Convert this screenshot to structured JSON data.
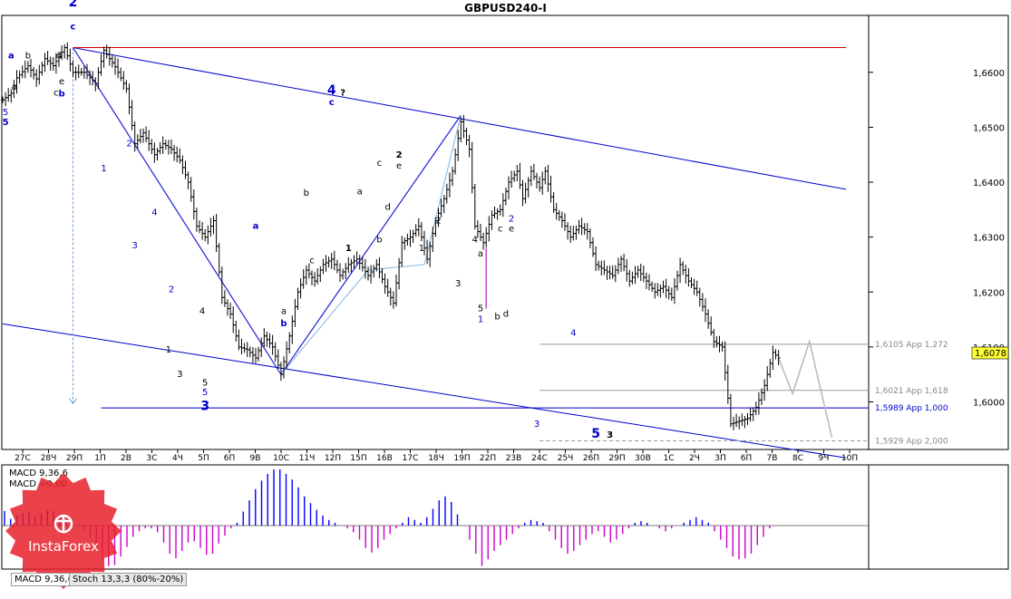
{
  "window": {
    "title": "GBPUSD240-I"
  },
  "colors": {
    "price_bar": "#000000",
    "channel": "#0000cc",
    "resistance": "#cc0000",
    "wave_path": "#2020dd",
    "projection": "#b8b8b8",
    "macd_pos": "#0000ff",
    "macd_neg": "#cc00cc",
    "fib_line": "#999999",
    "support_line": "#0000cc",
    "logo": "#e8202a"
  },
  "chart_data": {
    "type": "ohlc",
    "symbol": "GBPUSD",
    "timeframe": "H4",
    "y_range": [
      1.5915,
      1.6702
    ],
    "y_ticks": [
      "1,6600",
      "1,6500",
      "1,6400",
      "1,6300",
      "1,6200",
      "1,6100",
      "1,6000"
    ],
    "y_tick_values": [
      1.66,
      1.65,
      1.64,
      1.63,
      1.62,
      1.61,
      1.6
    ],
    "x_ticks": [
      "27С",
      "28Ч",
      "29П",
      "1П",
      "2В",
      "3С",
      "4Ч",
      "5П",
      "6П",
      "9В",
      "10С",
      "11Ч",
      "12П",
      "15П",
      "16В",
      "17С",
      "18Ч",
      "19П",
      "22П",
      "23В",
      "24С",
      "25Ч",
      "26П",
      "29П",
      "30В",
      "1С",
      "2Ч",
      "3П",
      "6П",
      "7В",
      "8С",
      "9Ч",
      "10П"
    ],
    "last_price": "1,6078",
    "last_price_value": 1.6078,
    "keypoints": [
      [
        0,
        1.655
      ],
      [
        3,
        1.6562
      ],
      [
        5,
        1.659
      ],
      [
        9,
        1.6612
      ],
      [
        12,
        1.6588
      ],
      [
        15,
        1.6625
      ],
      [
        18,
        1.6612
      ],
      [
        22,
        1.6645
      ],
      [
        25,
        1.66
      ],
      [
        29,
        1.66
      ],
      [
        33,
        1.658
      ],
      [
        36,
        1.664
      ],
      [
        40,
        1.661
      ],
      [
        44,
        1.657
      ],
      [
        47,
        1.647
      ],
      [
        50,
        1.649
      ],
      [
        54,
        1.645
      ],
      [
        57,
        1.647
      ],
      [
        60,
        1.646
      ],
      [
        63,
        1.644
      ],
      [
        66,
        1.64
      ],
      [
        69,
        1.632
      ],
      [
        72,
        1.63
      ],
      [
        75,
        1.633
      ],
      [
        78,
        1.619
      ],
      [
        81,
        1.616
      ],
      [
        84,
        1.61
      ],
      [
        87,
        1.6095
      ],
      [
        90,
        1.608
      ],
      [
        93,
        1.612
      ],
      [
        96,
        1.61
      ],
      [
        99,
        1.605
      ],
      [
        102,
        1.612
      ],
      [
        105,
        1.62
      ],
      [
        108,
        1.624
      ],
      [
        111,
        1.622
      ],
      [
        114,
        1.625
      ],
      [
        117,
        1.626
      ],
      [
        120,
        1.623
      ],
      [
        123,
        1.625
      ],
      [
        126,
        1.626
      ],
      [
        130,
        1.623
      ],
      [
        133,
        1.625
      ],
      [
        136,
        1.621
      ],
      [
        139,
        1.618
      ],
      [
        142,
        1.629
      ],
      [
        145,
        1.63
      ],
      [
        148,
        1.632
      ],
      [
        151,
        1.626
      ],
      [
        154,
        1.633
      ],
      [
        157,
        1.637
      ],
      [
        160,
        1.642
      ],
      [
        163,
        1.651
      ],
      [
        166,
        1.646
      ],
      [
        168,
        1.632
      ],
      [
        171,
        1.629
      ],
      [
        174,
        1.634
      ],
      [
        177,
        1.635
      ],
      [
        180,
        1.64
      ],
      [
        183,
        1.642
      ],
      [
        185,
        1.637
      ],
      [
        188,
        1.642
      ],
      [
        191,
        1.639
      ],
      [
        193,
        1.642
      ],
      [
        196,
        1.635
      ],
      [
        199,
        1.633
      ],
      [
        202,
        1.63
      ],
      [
        205,
        1.632
      ],
      [
        208,
        1.631
      ],
      [
        211,
        1.625
      ],
      [
        214,
        1.624
      ],
      [
        217,
        1.623
      ],
      [
        220,
        1.626
      ],
      [
        223,
        1.622
      ],
      [
        226,
        1.624
      ],
      [
        229,
        1.622
      ],
      [
        232,
        1.62
      ],
      [
        235,
        1.621
      ],
      [
        238,
        1.619
      ],
      [
        241,
        1.625
      ],
      [
        244,
        1.622
      ],
      [
        247,
        1.62
      ],
      [
        250,
        1.616
      ],
      [
        253,
        1.611
      ],
      [
        256,
        1.61
      ],
      [
        259,
        1.596
      ],
      [
        262,
        1.5965
      ],
      [
        265,
        1.597
      ],
      [
        268,
        1.599
      ],
      [
        271,
        1.603
      ],
      [
        274,
        1.609
      ],
      [
        276,
        1.608
      ]
    ],
    "projection": [
      [
        276,
        1.608
      ],
      [
        281,
        1.6015
      ],
      [
        287,
        1.611
      ],
      [
        295,
        1.5935
      ]
    ],
    "channel_upper": [
      [
        25,
        1.6645
      ],
      [
        300,
        1.6387
      ]
    ],
    "channel_lower": [
      [
        0,
        1.6142
      ],
      [
        300,
        1.5898
      ]
    ],
    "resistance_level": 1.6645,
    "resistance_range": [
      25,
      300
    ],
    "wave_path": [
      [
        25,
        1.6645
      ],
      [
        99,
        1.605
      ],
      [
        163,
        1.6522
      ]
    ],
    "wave_path_light": [
      [
        99,
        1.605
      ],
      [
        130,
        1.624
      ],
      [
        150,
        1.625
      ],
      [
        163,
        1.6522
      ]
    ],
    "fib_levels": [
      {
        "label": "1,6105 App 1,272",
        "value": 1.6105,
        "color": "#999999",
        "dashed": false
      },
      {
        "label": "1,6021 App 1,618",
        "value": 1.6021,
        "color": "#999999",
        "dashed": false
      },
      {
        "label": "1,5989 App 1,000",
        "value": 1.5989,
        "color": "#0000cc",
        "dashed": false
      },
      {
        "label": "1,5929 App 2,000",
        "value": 1.5929,
        "color": "#999999",
        "dashed": true
      }
    ],
    "wave_labels": [
      {
        "text": "2",
        "x": 25,
        "y": 1.672,
        "color": "#0000cc",
        "bold": true,
        "big": true
      },
      {
        "text": "c",
        "x": 25,
        "y": 1.6678,
        "color": "#0000cc",
        "bold": true
      },
      {
        "text": "a",
        "x": 3,
        "y": 1.6625,
        "color": "#0000cc",
        "bold": true
      },
      {
        "text": "b",
        "x": 9,
        "y": 1.6625,
        "color": "#000000"
      },
      {
        "text": "d",
        "x": 20,
        "y": 1.6625,
        "color": "#000000"
      },
      {
        "text": "a",
        "x": 4,
        "y": 1.6568,
        "color": "#000000"
      },
      {
        "text": "e",
        "x": 21,
        "y": 1.6578,
        "color": "#000000"
      },
      {
        "text": "c",
        "x": 19,
        "y": 1.6558,
        "color": "#000000"
      },
      {
        "text": "b",
        "x": 21,
        "y": 1.6556,
        "color": "#0000cc",
        "bold": true
      },
      {
        "text": "5",
        "x": 1,
        "y": 1.6522,
        "color": "#0000cc"
      },
      {
        "text": "5",
        "x": 1,
        "y": 1.6504,
        "color": "#0000cc",
        "bold": true
      },
      {
        "text": "1",
        "x": 36,
        "y": 1.642,
        "color": "#0000cc"
      },
      {
        "text": "2",
        "x": 45,
        "y": 1.6465,
        "color": "#0000cc"
      },
      {
        "text": "3",
        "x": 47,
        "y": 1.628,
        "color": "#0000cc"
      },
      {
        "text": "4",
        "x": 54,
        "y": 1.634,
        "color": "#0000cc"
      },
      {
        "text": "2",
        "x": 60,
        "y": 1.62,
        "color": "#0000cc"
      },
      {
        "text": "1",
        "x": 59,
        "y": 1.609,
        "color": "#000000"
      },
      {
        "text": "3",
        "x": 63,
        "y": 1.6045,
        "color": "#000000"
      },
      {
        "text": "4",
        "x": 71,
        "y": 1.616,
        "color": "#000000"
      },
      {
        "text": "5",
        "x": 72,
        "y": 1.603,
        "color": "#000000"
      },
      {
        "text": "5",
        "x": 72,
        "y": 1.6012,
        "color": "#0000cc"
      },
      {
        "text": "3",
        "x": 72,
        "y": 1.5985,
        "color": "#0000cc",
        "bold": true,
        "big": true
      },
      {
        "text": "a",
        "x": 90,
        "y": 1.6315,
        "color": "#0000cc",
        "bold": true
      },
      {
        "text": "a",
        "x": 100,
        "y": 1.616,
        "color": "#000000"
      },
      {
        "text": "b",
        "x": 100,
        "y": 1.6138,
        "color": "#0000cc",
        "bold": true
      },
      {
        "text": "b",
        "x": 108,
        "y": 1.6375,
        "color": "#000000"
      },
      {
        "text": "c",
        "x": 110,
        "y": 1.6252,
        "color": "#000000"
      },
      {
        "text": "4",
        "x": 117,
        "y": 1.656,
        "color": "#0000cc",
        "bold": true,
        "big": true
      },
      {
        "text": "c",
        "x": 117,
        "y": 1.654,
        "color": "#0000cc",
        "bold": true
      },
      {
        "text": "?",
        "x": 121,
        "y": 1.6558,
        "color": "#000000",
        "bold": true
      },
      {
        "text": "1",
        "x": 123,
        "y": 1.6275,
        "color": "#000000",
        "bold": true
      },
      {
        "text": "a",
        "x": 127,
        "y": 1.6378,
        "color": "#000000"
      },
      {
        "text": "b",
        "x": 134,
        "y": 1.629,
        "color": "#000000"
      },
      {
        "text": "c",
        "x": 134,
        "y": 1.643,
        "color": "#000000"
      },
      {
        "text": "d",
        "x": 137,
        "y": 1.635,
        "color": "#000000"
      },
      {
        "text": "2",
        "x": 141,
        "y": 1.6445,
        "color": "#000000",
        "bold": true
      },
      {
        "text": "e",
        "x": 141,
        "y": 1.6425,
        "color": "#000000"
      },
      {
        "text": "1",
        "x": 149,
        "y": 1.6275,
        "color": "#000000"
      },
      {
        "text": "2",
        "x": 155,
        "y": 1.6325,
        "color": "#000000"
      },
      {
        "text": "3",
        "x": 162,
        "y": 1.621,
        "color": "#000000"
      },
      {
        "text": "4",
        "x": 168,
        "y": 1.629,
        "color": "#000000"
      },
      {
        "text": "a",
        "x": 170,
        "y": 1.6265,
        "color": "#000000"
      },
      {
        "text": "5",
        "x": 170,
        "y": 1.6165,
        "color": "#000000"
      },
      {
        "text": "1",
        "x": 170,
        "y": 1.6145,
        "color": "#0000cc"
      },
      {
        "text": "b",
        "x": 176,
        "y": 1.615,
        "color": "#000000"
      },
      {
        "text": "d",
        "x": 179,
        "y": 1.6155,
        "color": "#000000"
      },
      {
        "text": "c",
        "x": 177,
        "y": 1.631,
        "color": "#000000"
      },
      {
        "text": "e",
        "x": 181,
        "y": 1.631,
        "color": "#000000"
      },
      {
        "text": "2",
        "x": 181,
        "y": 1.6328,
        "color": "#0000cc"
      },
      {
        "text": "3",
        "x": 190,
        "y": 1.5955,
        "color": "#0000cc"
      },
      {
        "text": "4",
        "x": 203,
        "y": 1.612,
        "color": "#0000cc"
      },
      {
        "text": "5",
        "x": 211,
        "y": 1.5935,
        "color": "#0000cc",
        "bold": true,
        "big": true
      },
      {
        "text": "3",
        "x": 216,
        "y": 1.5935,
        "color": "#000000",
        "bold": true
      }
    ],
    "indicator": {
      "name": "MACD",
      "params": "9,36,6",
      "label1": "MACD 9,36,6",
      "label2": "MACD =0,00",
      "histogram": [
        0.26,
        0.12,
        0.18,
        0.22,
        0.25,
        0.15,
        0.22,
        0.28,
        0.26,
        0.2,
        0.1,
        0.05,
        0.02,
        -0.08,
        -0.22,
        -0.4,
        -0.6,
        -0.72,
        -0.7,
        -0.55,
        -0.38,
        -0.2,
        -0.1,
        -0.05,
        -0.05,
        -0.12,
        -0.3,
        -0.5,
        -0.58,
        -0.45,
        -0.3,
        -0.28,
        -0.4,
        -0.52,
        -0.5,
        -0.32,
        -0.18,
        -0.05,
        0.05,
        0.25,
        0.45,
        0.65,
        0.8,
        0.92,
        1.0,
        1.0,
        0.92,
        0.82,
        0.68,
        0.52,
        0.4,
        0.28,
        0.18,
        0.1,
        0.05,
        0.0,
        -0.05,
        -0.12,
        -0.25,
        -0.4,
        -0.48,
        -0.4,
        -0.25,
        -0.15,
        -0.05,
        0.05,
        0.15,
        0.1,
        0.05,
        0.15,
        0.3,
        0.45,
        0.52,
        0.42,
        0.2,
        0.0,
        -0.25,
        -0.5,
        -0.72,
        -0.6,
        -0.45,
        -0.35,
        -0.25,
        -0.15,
        -0.05,
        0.05,
        0.1,
        0.08,
        0.05,
        -0.1,
        -0.25,
        -0.4,
        -0.5,
        -0.45,
        -0.35,
        -0.25,
        -0.15,
        -0.1,
        -0.2,
        -0.3,
        -0.25,
        -0.15,
        -0.05,
        0.05,
        0.08,
        0.05,
        0.0,
        -0.05,
        -0.1,
        -0.05,
        0.0,
        0.05,
        0.1,
        0.15,
        0.1,
        0.05,
        -0.1,
        -0.25,
        -0.4,
        -0.55,
        -0.6,
        -0.58,
        -0.5,
        -0.35,
        -0.2,
        -0.05
      ]
    }
  },
  "tabs": [
    {
      "label": "MACD 9,36,6",
      "active": true
    },
    {
      "label": "Stoch 13,3,3 (80%-20%)",
      "active": false
    }
  ],
  "logo": {
    "text": "InstaForex",
    "icon": "instaforex-logo-icon"
  }
}
